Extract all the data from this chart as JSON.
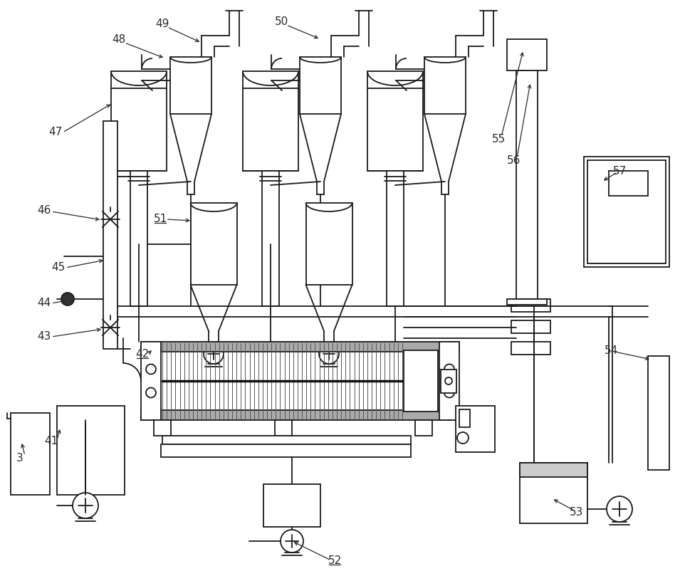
{
  "bg_color": "#ffffff",
  "line_color": "#1a1a1a",
  "label_color": "#2a2a2a",
  "lw": 1.3
}
